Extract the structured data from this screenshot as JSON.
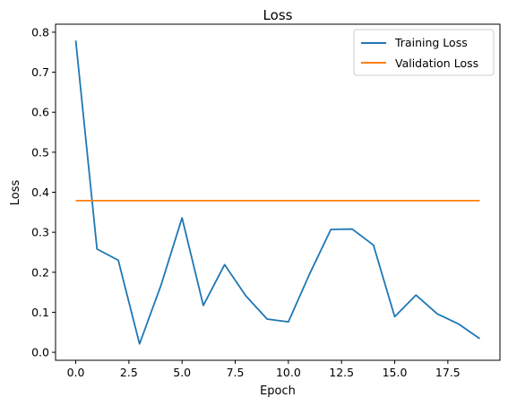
{
  "chart_data": {
    "type": "line",
    "title": "Loss",
    "xlabel": "Epoch",
    "ylabel": "Loss",
    "xlim": [
      -0.95,
      19.95
    ],
    "ylim": [
      -0.02,
      0.82
    ],
    "x": [
      0,
      1,
      2,
      3,
      4,
      5,
      6,
      7,
      8,
      9,
      10,
      11,
      12,
      13,
      14,
      15,
      16,
      17,
      18,
      19
    ],
    "xticks": [
      0.0,
      2.5,
      5.0,
      7.5,
      10.0,
      12.5,
      15.0,
      17.5
    ],
    "xtick_labels": [
      "0.0",
      "2.5",
      "5.0",
      "7.5",
      "10.0",
      "12.5",
      "15.0",
      "17.5"
    ],
    "yticks": [
      0.0,
      0.1,
      0.2,
      0.3,
      0.4,
      0.5,
      0.6,
      0.7,
      0.8
    ],
    "ytick_labels": [
      "0.0",
      "0.1",
      "0.2",
      "0.3",
      "0.4",
      "0.5",
      "0.6",
      "0.7",
      "0.8"
    ],
    "series": [
      {
        "name": "Training Loss",
        "color": "#1f77b4",
        "values": [
          0.779,
          0.258,
          0.23,
          0.021,
          0.166,
          0.336,
          0.117,
          0.219,
          0.141,
          0.083,
          0.076,
          0.196,
          0.307,
          0.308,
          0.268,
          0.089,
          0.143,
          0.096,
          0.071,
          0.034
        ]
      },
      {
        "name": "Validation Loss",
        "color": "#ff7f0e",
        "values": [
          0.379,
          0.379,
          0.379,
          0.379,
          0.379,
          0.379,
          0.379,
          0.379,
          0.379,
          0.379,
          0.379,
          0.379,
          0.379,
          0.379,
          0.379,
          0.379,
          0.379,
          0.379,
          0.379,
          0.379
        ]
      }
    ],
    "grid": false,
    "legend_position": "top-right"
  }
}
